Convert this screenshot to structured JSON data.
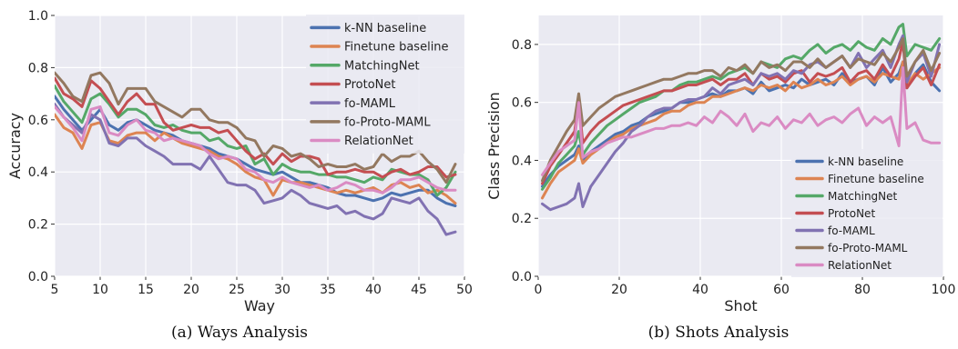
{
  "series_style": {
    "names": [
      "k-NN baseline",
      "Finetune baseline",
      "MatchingNet",
      "ProtoNet",
      "fo-MAML",
      "fo-Proto-MAML",
      "RelationNet"
    ],
    "colors": [
      "#4C72B0",
      "#DD8452",
      "#55A868",
      "#C44E52",
      "#8172B2",
      "#937860",
      "#DA8BC3"
    ]
  },
  "chart_data": [
    {
      "type": "line",
      "caption": "(a)  Ways Analysis",
      "xlabel": "Way",
      "ylabel": "Accuracy",
      "xlim": [
        5,
        50
      ],
      "ylim": [
        0.0,
        1.0
      ],
      "xticks": [
        "5",
        "10",
        "15",
        "20",
        "25",
        "30",
        "35",
        "40",
        "45",
        "50"
      ],
      "yticks": [
        "0.0",
        "0.2",
        "0.4",
        "0.6",
        "0.8",
        "1.0"
      ],
      "grid": true,
      "legend_position": "top-right",
      "x": [
        5,
        6,
        7,
        8,
        9,
        10,
        11,
        12,
        13,
        14,
        15,
        16,
        17,
        18,
        19,
        20,
        21,
        22,
        23,
        24,
        25,
        26,
        27,
        28,
        29,
        30,
        31,
        32,
        33,
        34,
        35,
        36,
        37,
        38,
        39,
        40,
        41,
        42,
        43,
        44,
        45,
        46,
        47,
        48,
        49
      ],
      "series": [
        {
          "name": "k-NN baseline",
          "values": [
            0.69,
            0.64,
            0.6,
            0.56,
            0.6,
            0.64,
            0.58,
            0.56,
            0.59,
            0.6,
            0.58,
            0.56,
            0.55,
            0.54,
            0.52,
            0.51,
            0.5,
            0.49,
            0.47,
            0.46,
            0.45,
            0.43,
            0.41,
            0.4,
            0.39,
            0.4,
            0.38,
            0.36,
            0.36,
            0.35,
            0.34,
            0.32,
            0.31,
            0.31,
            0.3,
            0.29,
            0.3,
            0.32,
            0.31,
            0.32,
            0.33,
            0.33,
            0.3,
            0.28,
            0.27
          ]
        },
        {
          "name": "Finetune baseline",
          "values": [
            0.62,
            0.57,
            0.55,
            0.49,
            0.58,
            0.59,
            0.52,
            0.51,
            0.54,
            0.55,
            0.55,
            0.52,
            0.55,
            0.53,
            0.51,
            0.5,
            0.49,
            0.48,
            0.46,
            0.45,
            0.43,
            0.4,
            0.38,
            0.37,
            0.31,
            0.37,
            0.36,
            0.36,
            0.35,
            0.34,
            0.33,
            0.32,
            0.33,
            0.32,
            0.33,
            0.34,
            0.32,
            0.35,
            0.36,
            0.34,
            0.35,
            0.32,
            0.33,
            0.31,
            0.28
          ]
        },
        {
          "name": "MatchingNet",
          "values": [
            0.73,
            0.67,
            0.63,
            0.59,
            0.68,
            0.7,
            0.66,
            0.61,
            0.64,
            0.64,
            0.62,
            0.58,
            0.57,
            0.58,
            0.56,
            0.55,
            0.55,
            0.52,
            0.53,
            0.5,
            0.49,
            0.5,
            0.43,
            0.45,
            0.39,
            0.43,
            0.41,
            0.4,
            0.4,
            0.39,
            0.39,
            0.38,
            0.38,
            0.37,
            0.36,
            0.38,
            0.37,
            0.41,
            0.4,
            0.39,
            0.39,
            0.37,
            0.31,
            0.34,
            0.4
          ]
        },
        {
          "name": "ProtoNet",
          "values": [
            0.76,
            0.7,
            0.68,
            0.65,
            0.75,
            0.72,
            0.67,
            0.62,
            0.67,
            0.7,
            0.66,
            0.66,
            0.59,
            0.56,
            0.57,
            0.58,
            0.57,
            0.57,
            0.55,
            0.56,
            0.52,
            0.48,
            0.45,
            0.47,
            0.43,
            0.47,
            0.44,
            0.46,
            0.46,
            0.45,
            0.39,
            0.4,
            0.4,
            0.41,
            0.4,
            0.4,
            0.38,
            0.4,
            0.41,
            0.39,
            0.4,
            0.42,
            0.42,
            0.38,
            0.39
          ]
        },
        {
          "name": "fo-MAML",
          "values": [
            0.66,
            0.61,
            0.58,
            0.55,
            0.62,
            0.6,
            0.51,
            0.5,
            0.53,
            0.53,
            0.5,
            0.48,
            0.46,
            0.43,
            0.43,
            0.43,
            0.41,
            0.46,
            0.41,
            0.36,
            0.35,
            0.35,
            0.33,
            0.28,
            0.29,
            0.3,
            0.33,
            0.31,
            0.28,
            0.27,
            0.26,
            0.27,
            0.24,
            0.25,
            0.23,
            0.22,
            0.24,
            0.3,
            0.29,
            0.28,
            0.3,
            0.25,
            0.22,
            0.16,
            0.17
          ]
        },
        {
          "name": "fo-Proto-MAML",
          "values": [
            0.78,
            0.74,
            0.69,
            0.67,
            0.77,
            0.78,
            0.74,
            0.66,
            0.72,
            0.72,
            0.72,
            0.67,
            0.65,
            0.63,
            0.61,
            0.64,
            0.64,
            0.6,
            0.59,
            0.59,
            0.57,
            0.53,
            0.52,
            0.46,
            0.5,
            0.49,
            0.46,
            0.47,
            0.45,
            0.42,
            0.43,
            0.42,
            0.42,
            0.43,
            0.41,
            0.42,
            0.47,
            0.44,
            0.46,
            0.46,
            0.48,
            0.44,
            0.41,
            0.36,
            0.43
          ]
        },
        {
          "name": "RelationNet",
          "values": [
            0.65,
            0.61,
            0.57,
            0.52,
            0.64,
            0.65,
            0.55,
            0.54,
            0.58,
            0.6,
            0.56,
            0.55,
            0.52,
            0.53,
            0.52,
            0.51,
            0.5,
            0.47,
            0.45,
            0.46,
            0.45,
            0.41,
            0.4,
            0.37,
            0.36,
            0.38,
            0.36,
            0.35,
            0.34,
            0.35,
            0.33,
            0.34,
            0.36,
            0.35,
            0.33,
            0.33,
            0.32,
            0.34,
            0.37,
            0.37,
            0.38,
            0.36,
            0.34,
            0.33,
            0.33
          ]
        }
      ]
    },
    {
      "type": "line",
      "caption": "(b)  Shots Analysis",
      "xlabel": "Shot",
      "ylabel": "Class Precision",
      "xlim": [
        0,
        100
      ],
      "ylim": [
        0.0,
        0.9
      ],
      "xticks": [
        "0",
        "20",
        "40",
        "60",
        "80",
        "100"
      ],
      "yticks": [
        "0.0",
        "0.2",
        "0.4",
        "0.6",
        "0.8"
      ],
      "grid": true,
      "legend_position": "bottom-right",
      "x": [
        1,
        3,
        5,
        7,
        9,
        10,
        11,
        13,
        15,
        17,
        19,
        21,
        23,
        25,
        27,
        29,
        31,
        33,
        35,
        37,
        39,
        41,
        43,
        45,
        47,
        49,
        51,
        53,
        55,
        57,
        59,
        61,
        63,
        65,
        67,
        69,
        71,
        73,
        75,
        77,
        79,
        81,
        83,
        85,
        87,
        89,
        90,
        91,
        93,
        95,
        97,
        99
      ],
      "series": [
        {
          "name": "k-NN baseline",
          "values": [
            0.31,
            0.35,
            0.38,
            0.4,
            0.42,
            0.45,
            0.4,
            0.43,
            0.45,
            0.47,
            0.49,
            0.5,
            0.52,
            0.53,
            0.55,
            0.56,
            0.57,
            0.58,
            0.6,
            0.6,
            0.61,
            0.62,
            0.63,
            0.62,
            0.64,
            0.64,
            0.65,
            0.63,
            0.67,
            0.64,
            0.65,
            0.66,
            0.65,
            0.68,
            0.66,
            0.67,
            0.68,
            0.66,
            0.7,
            0.67,
            0.68,
            0.69,
            0.66,
            0.72,
            0.67,
            0.7,
            0.74,
            0.65,
            0.7,
            0.73,
            0.67,
            0.64
          ]
        },
        {
          "name": "Finetune baseline",
          "values": [
            0.27,
            0.32,
            0.36,
            0.38,
            0.4,
            0.44,
            0.39,
            0.42,
            0.44,
            0.46,
            0.48,
            0.49,
            0.51,
            0.52,
            0.53,
            0.54,
            0.56,
            0.57,
            0.57,
            0.59,
            0.6,
            0.6,
            0.62,
            0.62,
            0.63,
            0.64,
            0.65,
            0.64,
            0.66,
            0.65,
            0.66,
            0.64,
            0.67,
            0.65,
            0.66,
            0.68,
            0.66,
            0.67,
            0.69,
            0.66,
            0.68,
            0.69,
            0.67,
            0.7,
            0.69,
            0.68,
            0.74,
            0.66,
            0.7,
            0.68,
            0.7,
            0.72
          ]
        },
        {
          "name": "MatchingNet",
          "values": [
            0.3,
            0.34,
            0.39,
            0.42,
            0.45,
            0.5,
            0.42,
            0.46,
            0.49,
            0.52,
            0.54,
            0.56,
            0.58,
            0.6,
            0.61,
            0.62,
            0.64,
            0.64,
            0.66,
            0.67,
            0.67,
            0.68,
            0.69,
            0.68,
            0.7,
            0.71,
            0.72,
            0.7,
            0.74,
            0.73,
            0.72,
            0.75,
            0.76,
            0.75,
            0.78,
            0.8,
            0.77,
            0.79,
            0.8,
            0.78,
            0.81,
            0.79,
            0.78,
            0.82,
            0.8,
            0.86,
            0.87,
            0.76,
            0.8,
            0.79,
            0.78,
            0.82
          ]
        },
        {
          "name": "ProtoNet",
          "values": [
            0.32,
            0.38,
            0.42,
            0.46,
            0.5,
            0.6,
            0.46,
            0.5,
            0.53,
            0.55,
            0.57,
            0.59,
            0.6,
            0.61,
            0.62,
            0.63,
            0.64,
            0.64,
            0.65,
            0.66,
            0.66,
            0.67,
            0.68,
            0.66,
            0.68,
            0.68,
            0.7,
            0.66,
            0.7,
            0.68,
            0.69,
            0.67,
            0.7,
            0.71,
            0.67,
            0.7,
            0.69,
            0.7,
            0.72,
            0.67,
            0.7,
            0.71,
            0.68,
            0.73,
            0.69,
            0.75,
            0.81,
            0.65,
            0.69,
            0.72,
            0.66,
            0.73
          ]
        },
        {
          "name": "fo-MAML",
          "values": [
            0.25,
            0.23,
            0.24,
            0.25,
            0.27,
            0.32,
            0.24,
            0.31,
            0.35,
            0.39,
            0.43,
            0.46,
            0.5,
            0.52,
            0.55,
            0.57,
            0.58,
            0.58,
            0.6,
            0.61,
            0.61,
            0.62,
            0.65,
            0.63,
            0.66,
            0.67,
            0.68,
            0.66,
            0.7,
            0.69,
            0.7,
            0.68,
            0.71,
            0.7,
            0.73,
            0.74,
            0.72,
            0.74,
            0.76,
            0.72,
            0.77,
            0.72,
            0.75,
            0.78,
            0.72,
            0.8,
            0.83,
            0.67,
            0.74,
            0.77,
            0.69,
            0.8
          ]
        },
        {
          "name": "fo-Proto-MAML",
          "values": [
            0.33,
            0.4,
            0.45,
            0.5,
            0.54,
            0.63,
            0.52,
            0.55,
            0.58,
            0.6,
            0.62,
            0.63,
            0.64,
            0.65,
            0.66,
            0.67,
            0.68,
            0.68,
            0.69,
            0.7,
            0.7,
            0.71,
            0.71,
            0.69,
            0.72,
            0.71,
            0.73,
            0.7,
            0.74,
            0.72,
            0.73,
            0.71,
            0.74,
            0.74,
            0.72,
            0.75,
            0.72,
            0.74,
            0.76,
            0.72,
            0.75,
            0.74,
            0.73,
            0.77,
            0.74,
            0.79,
            0.82,
            0.69,
            0.74,
            0.78,
            0.71,
            0.77
          ]
        },
        {
          "name": "RelationNet",
          "values": [
            0.35,
            0.39,
            0.43,
            0.45,
            0.47,
            0.6,
            0.41,
            0.43,
            0.44,
            0.46,
            0.47,
            0.48,
            0.48,
            0.49,
            0.5,
            0.51,
            0.51,
            0.52,
            0.52,
            0.53,
            0.52,
            0.55,
            0.53,
            0.57,
            0.55,
            0.52,
            0.56,
            0.5,
            0.53,
            0.52,
            0.55,
            0.51,
            0.54,
            0.53,
            0.56,
            0.52,
            0.54,
            0.55,
            0.53,
            0.56,
            0.58,
            0.52,
            0.55,
            0.53,
            0.55,
            0.45,
            0.72,
            0.51,
            0.53,
            0.47,
            0.46,
            0.46
          ]
        }
      ]
    }
  ]
}
